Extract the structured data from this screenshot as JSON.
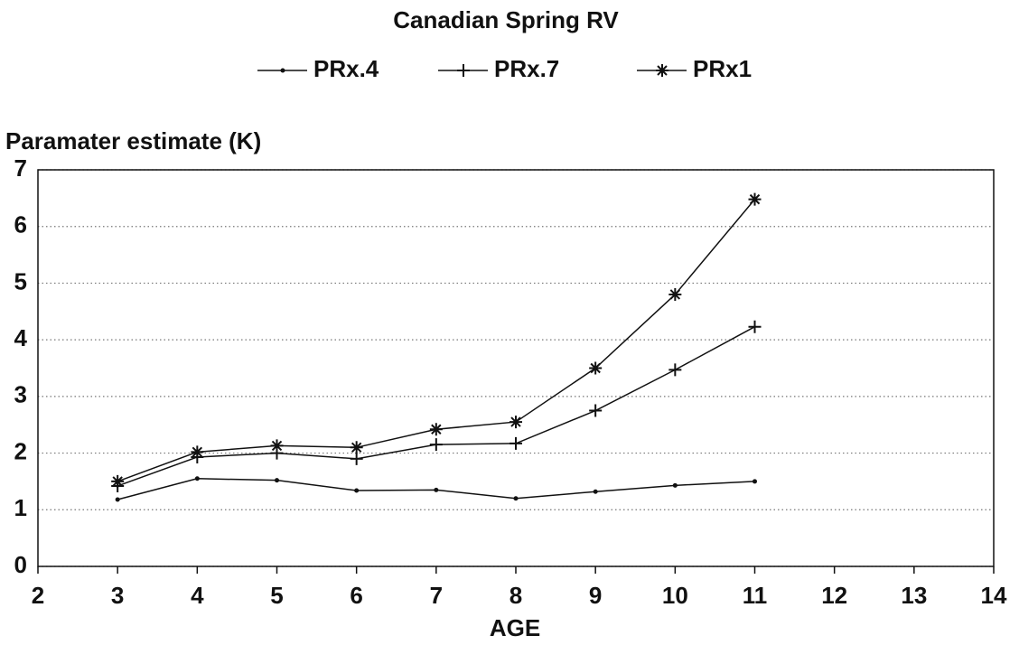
{
  "chart_data": {
    "type": "line",
    "title": "Canadian Spring RV",
    "ylabel": "Paramater estimate (K)",
    "xlabel": "AGE",
    "x": [
      3,
      4,
      5,
      6,
      7,
      8,
      9,
      10,
      11
    ],
    "series": [
      {
        "name": "PRx.4",
        "color": "#111111",
        "marker": "dot",
        "values": [
          1.18,
          1.55,
          1.52,
          1.34,
          1.35,
          1.2,
          1.32,
          1.43,
          1.5
        ]
      },
      {
        "name": "PRx.7",
        "color": "#111111",
        "marker": "plus",
        "values": [
          1.42,
          1.93,
          2.0,
          1.9,
          2.15,
          2.17,
          2.75,
          3.47,
          4.23
        ]
      },
      {
        "name": "PRx1",
        "color": "#111111",
        "marker": "star",
        "values": [
          1.5,
          2.02,
          2.13,
          2.1,
          2.42,
          2.55,
          3.5,
          4.8,
          6.48
        ]
      }
    ],
    "xlim": [
      2,
      14
    ],
    "xticks": [
      2,
      3,
      4,
      5,
      6,
      7,
      8,
      9,
      10,
      11,
      12,
      13,
      14
    ],
    "ylim": [
      0,
      7
    ],
    "yticks": [
      0,
      1,
      2,
      3,
      4,
      5,
      6,
      7
    ],
    "grid": true,
    "legend": "top"
  }
}
